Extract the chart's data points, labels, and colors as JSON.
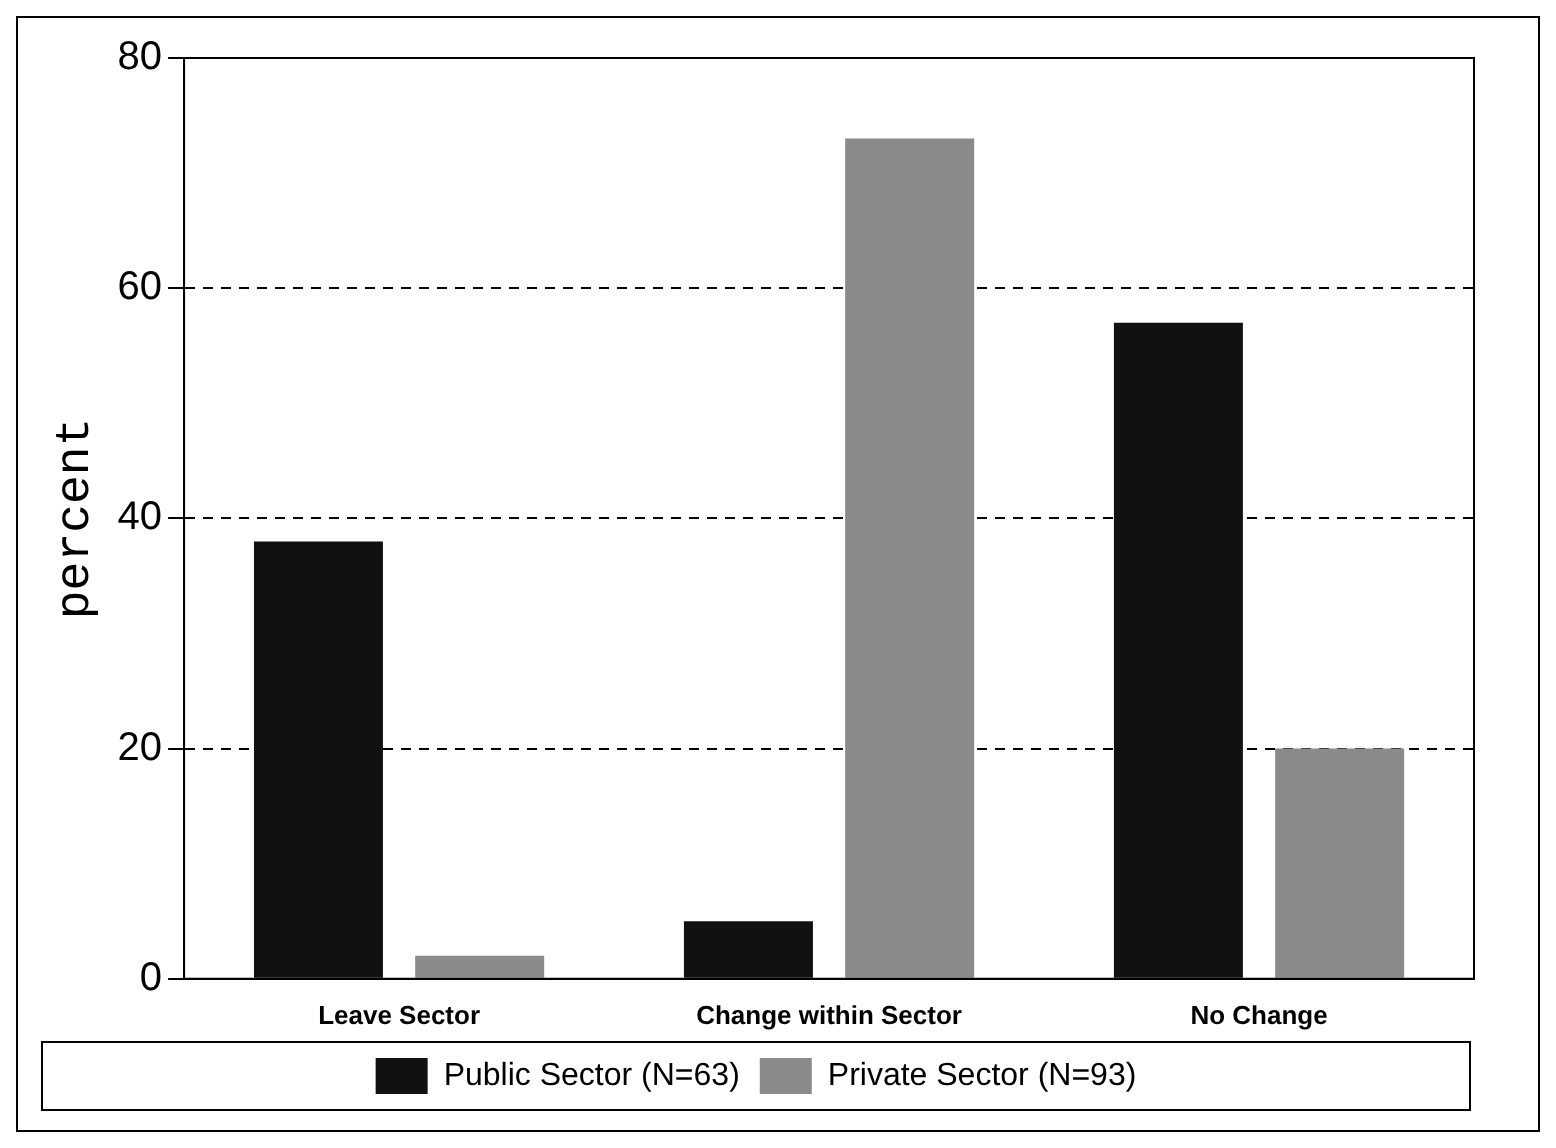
{
  "chart_data": {
    "type": "bar",
    "ylabel": "percent",
    "categories": [
      "Leave Sector",
      "Change within Sector",
      "No Change"
    ],
    "series": [
      {
        "name": "Public Sector (N=63)",
        "color": "#111111",
        "values": [
          38,
          5,
          57
        ]
      },
      {
        "name": "Private Sector (N=93)",
        "color": "#8a8a8a",
        "values": [
          2,
          73,
          20
        ]
      }
    ],
    "ylim": [
      0,
      80
    ],
    "yticks": [
      0,
      20,
      40,
      60,
      80
    ],
    "grid": "y",
    "legend": "bottom"
  }
}
